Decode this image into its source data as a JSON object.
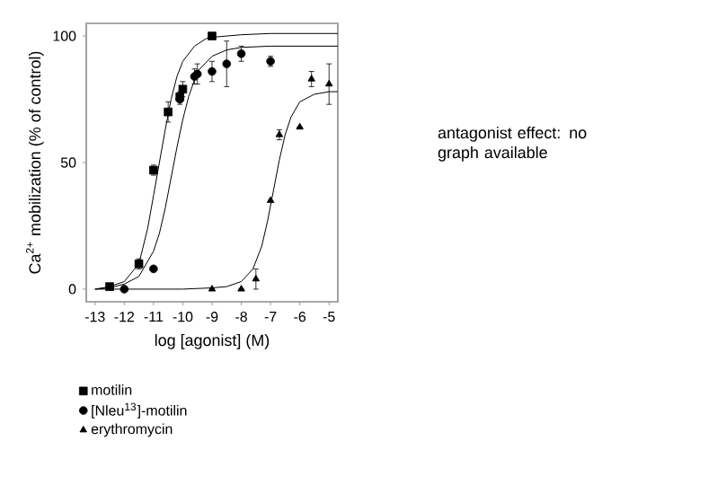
{
  "chart_data": {
    "type": "scatter",
    "xlabel": "log [agonist] (M)",
    "ylabel": "Ca$^{2+}$ mobilization (% of control)",
    "xlim": [
      -13.3,
      -4.7
    ],
    "xticks": [
      -13,
      -12,
      -11,
      -10,
      -9,
      -8,
      -7,
      -6,
      -5
    ],
    "ylim": [
      -5,
      105
    ],
    "yticks": [
      0,
      50,
      100
    ],
    "legend": "bottom",
    "grid": false,
    "annotations": [
      "antagonist effect: no graph available"
    ],
    "series": [
      {
        "name": "motilin",
        "marker": "square",
        "color": "#000000",
        "x": [
          -12.5,
          -11.5,
          -11,
          -10.5,
          -10.1,
          -10,
          -9
        ],
        "values": [
          1,
          10,
          47,
          70,
          76,
          79,
          100
        ],
        "errors": [
          null,
          2,
          2,
          4,
          2,
          3,
          null
        ]
      },
      {
        "name": "[Nleu$^{13}$]-motilin",
        "marker": "circle",
        "color": "#000000",
        "x": [
          -12,
          -11,
          -10.1,
          -9.6,
          -9.5,
          -9,
          -8.5,
          -8,
          -7
        ],
        "values": [
          0,
          8,
          75,
          84,
          85,
          86,
          89,
          93,
          90
        ],
        "errors": [
          null,
          null,
          2,
          3,
          4,
          4,
          9,
          3,
          2
        ]
      },
      {
        "name": "erythromycin",
        "marker": "triangle",
        "color": "#000000",
        "x": [
          -9,
          -8,
          -7.5,
          -7,
          -6.7,
          -6,
          -5.6,
          -5
        ],
        "values": [
          0,
          0,
          4,
          35,
          61,
          64,
          83,
          81
        ],
        "errors": [
          null,
          null,
          4,
          null,
          2,
          null,
          3,
          8
        ]
      },
      {
        "type": "line",
        "color": "#000000",
        "x": [
          -13,
          -12.5,
          -12,
          -11.5,
          -11.2,
          -11,
          -10.8,
          -10.6,
          -10.4,
          -10.2,
          -10,
          -9.6,
          -9.2,
          -9,
          -8.5,
          -8,
          -7,
          -6,
          -5,
          -4.7
        ],
        "values": [
          0,
          1,
          3,
          10,
          24,
          37,
          50,
          63,
          75,
          84,
          90,
          96,
          99,
          99.5,
          100,
          100.5,
          101,
          101,
          101,
          101
        ]
      },
      {
        "type": "line",
        "color": "#000000",
        "x": [
          -13,
          -12.5,
          -12,
          -11.5,
          -11,
          -10.8,
          -10.6,
          -10.4,
          -10.2,
          -10,
          -9.8,
          -9.5,
          -9,
          -8.5,
          -8,
          -7,
          -6,
          -5,
          -4.7
        ],
        "values": [
          0,
          0.5,
          2,
          5,
          15,
          22,
          32,
          44,
          56,
          67,
          76,
          86,
          92,
          94.5,
          95.5,
          96,
          96,
          96,
          96
        ]
      },
      {
        "type": "line",
        "color": "#000000",
        "x": [
          -13,
          -10,
          -9,
          -8.5,
          -8,
          -7.6,
          -7.3,
          -7.1,
          -6.9,
          -6.7,
          -6.5,
          -6.3,
          -6,
          -5.5,
          -5,
          -4.7
        ],
        "values": [
          0,
          0,
          0.5,
          1,
          3,
          8,
          17,
          27,
          39,
          51,
          61,
          68,
          74,
          77,
          78,
          78
        ]
      }
    ]
  }
}
